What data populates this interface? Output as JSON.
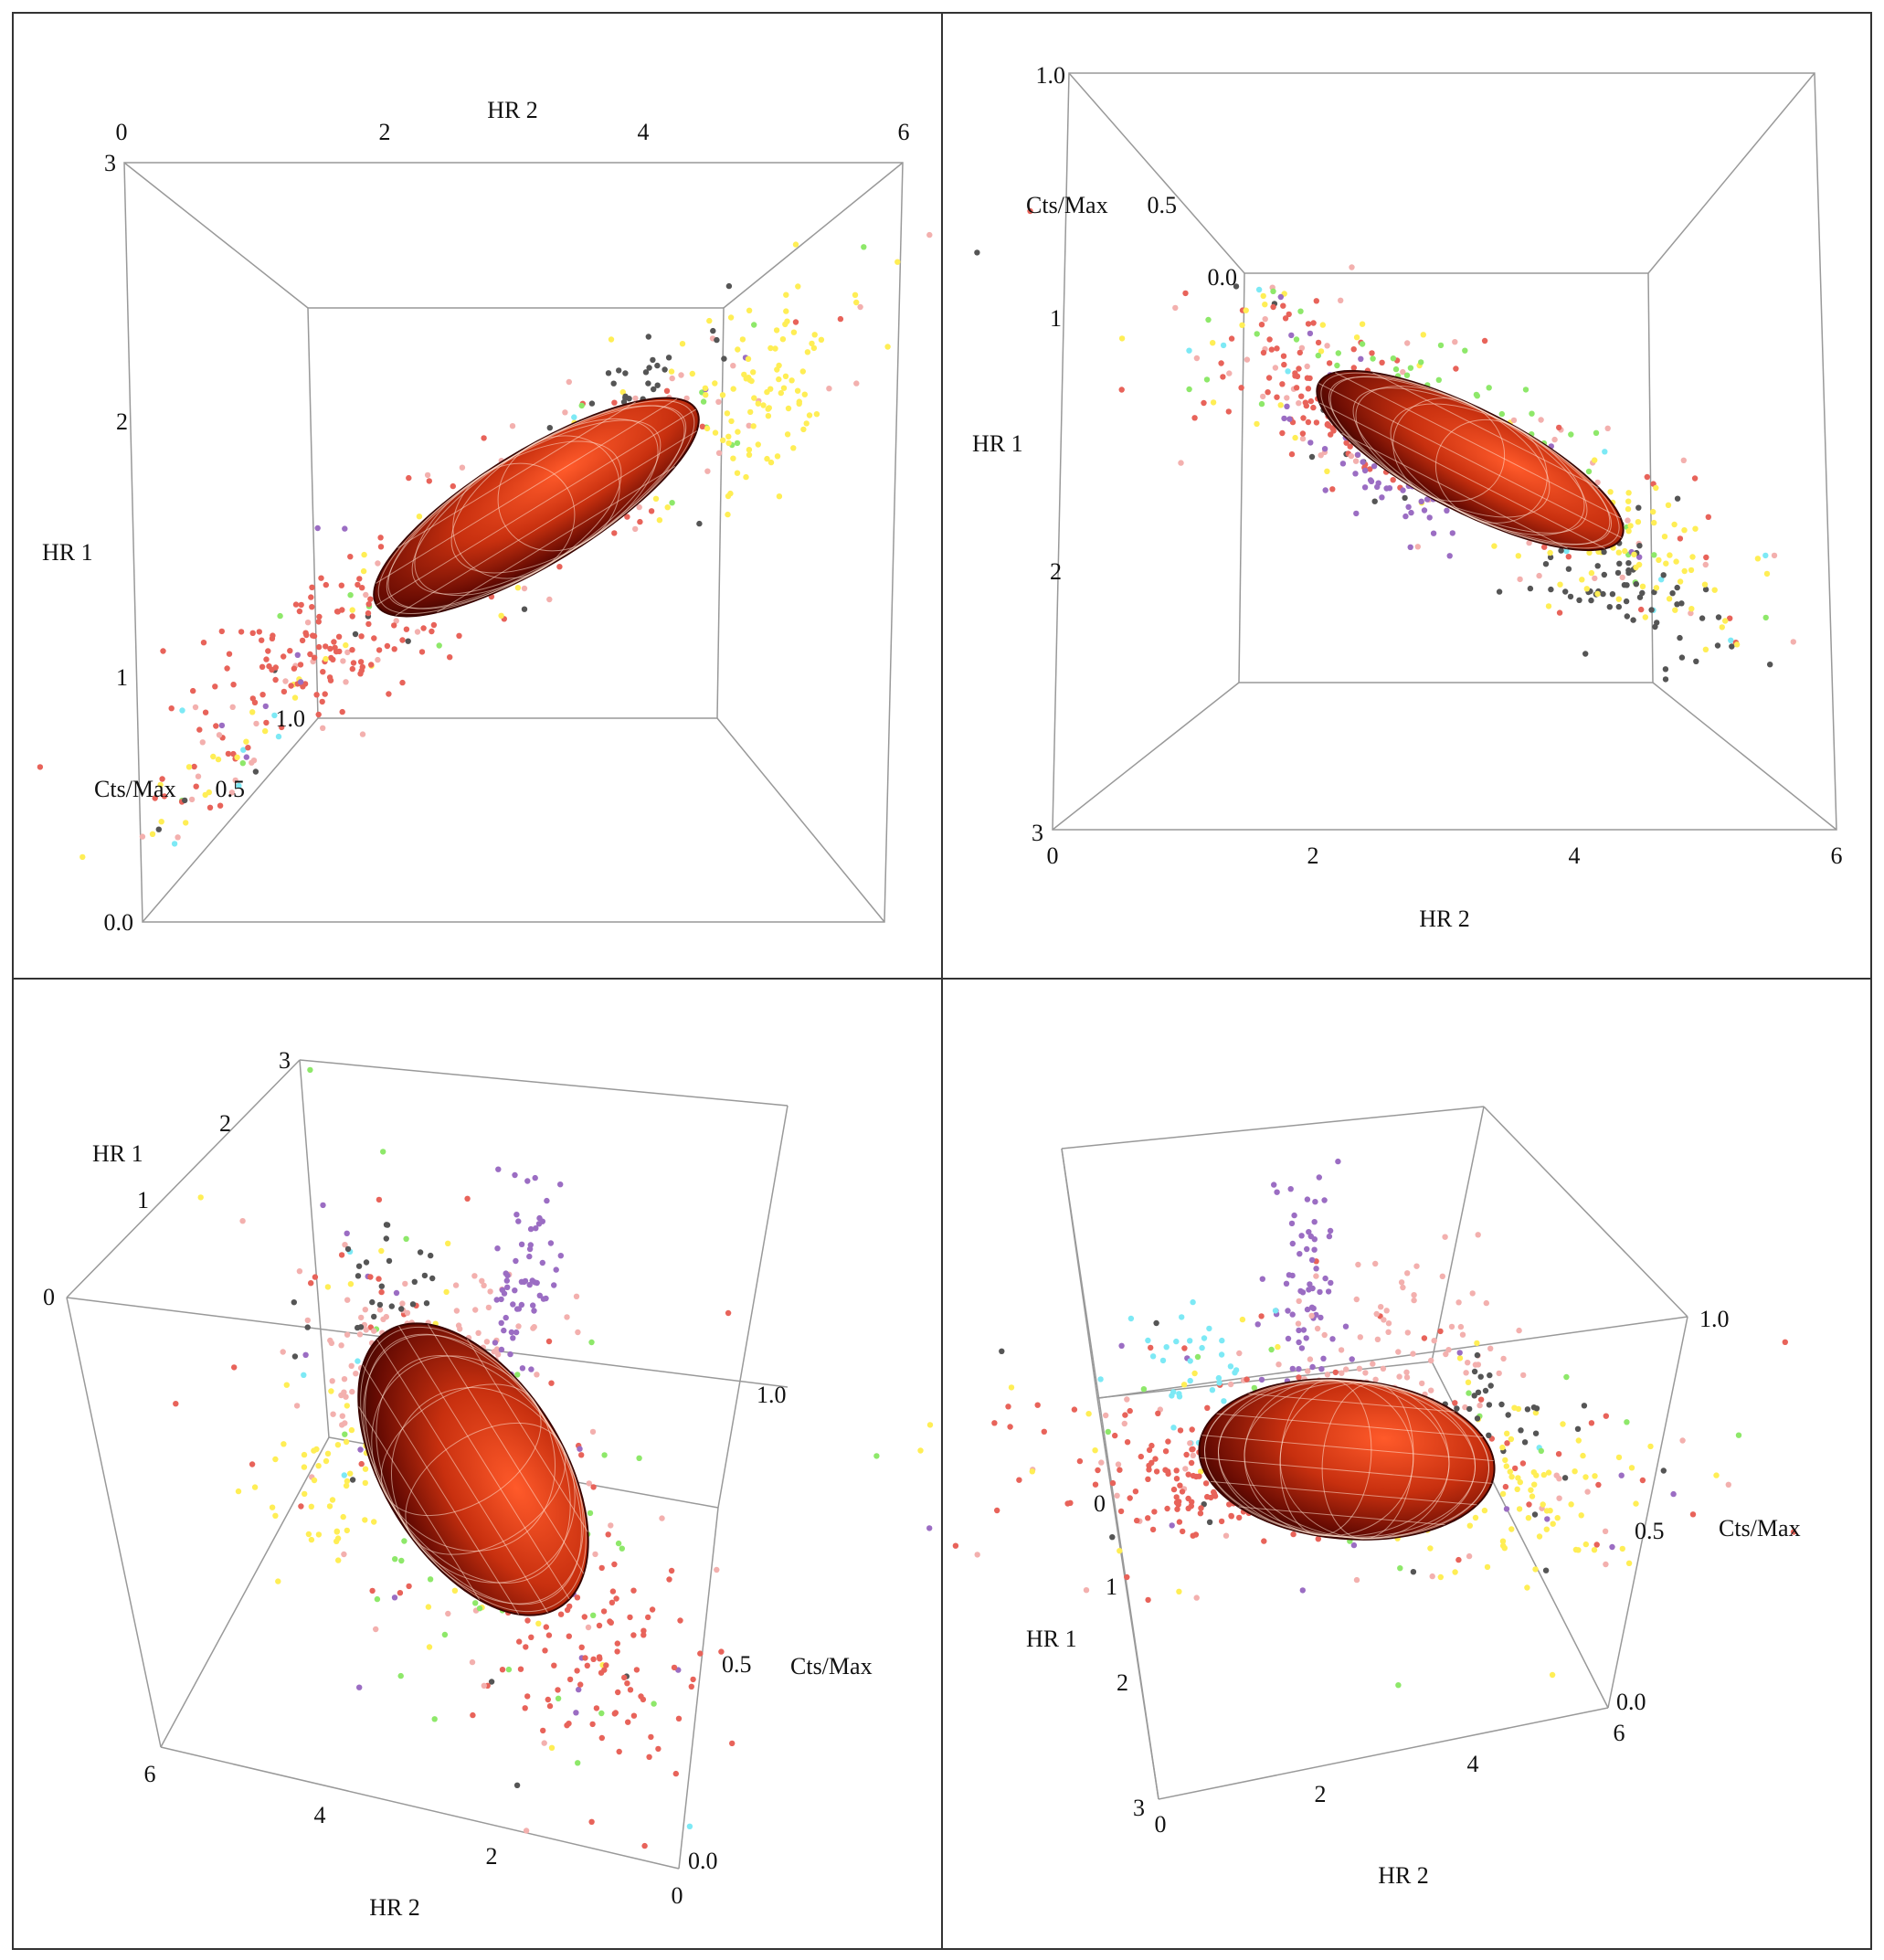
{
  "chart_data": [
    {
      "type": "scatter3d",
      "panel": "top-left",
      "axes": {
        "x": {
          "label": "HR 2",
          "ticks": [
            "0",
            "2",
            "4",
            "6"
          ],
          "range": [
            0,
            6
          ]
        },
        "y": {
          "label": "HR 1",
          "ticks": [
            "1",
            "2",
            "3"
          ],
          "range": [
            0,
            3
          ]
        },
        "z": {
          "label": "Cts/Max",
          "ticks": [
            "0.0",
            "0.5",
            "1.0"
          ],
          "range": [
            0,
            1
          ]
        }
      },
      "overlay": "red confidence ellipsoid with mesh",
      "series_colors": [
        "#e8635a",
        "#f3b0ae",
        "#ffee55",
        "#8ee86a",
        "#9b6dc3",
        "#555555",
        "#7de9f5"
      ]
    },
    {
      "type": "scatter3d",
      "panel": "top-right",
      "axes": {
        "x": {
          "label": "HR 2",
          "ticks": [
            "0",
            "2",
            "4",
            "6"
          ],
          "range": [
            0,
            6
          ]
        },
        "y": {
          "label": "HR 1",
          "ticks": [
            "1",
            "2",
            "3"
          ],
          "range": [
            0,
            3
          ]
        },
        "z": {
          "label": "Cts/Max",
          "ticks": [
            "0.0",
            "0.5",
            "1.0"
          ],
          "range": [
            0,
            1
          ]
        }
      },
      "overlay": "red confidence ellipsoid with mesh",
      "series_colors": [
        "#e8635a",
        "#f3b0ae",
        "#ffee55",
        "#8ee86a",
        "#9b6dc3",
        "#555555",
        "#7de9f5"
      ]
    },
    {
      "type": "scatter3d",
      "panel": "bottom-left",
      "axes": {
        "x": {
          "label": "HR 2",
          "ticks": [
            "0",
            "2",
            "4",
            "6"
          ],
          "range": [
            0,
            6
          ]
        },
        "y": {
          "label": "HR 1",
          "ticks": [
            "0",
            "1",
            "2",
            "3"
          ],
          "range": [
            0,
            3
          ]
        },
        "z": {
          "label": "Cts/Max",
          "ticks": [
            "0.0",
            "0.5",
            "1.0"
          ],
          "range": [
            0,
            1
          ]
        }
      },
      "overlay": "red confidence ellipsoid with mesh",
      "series_colors": [
        "#e8635a",
        "#f3b0ae",
        "#ffee55",
        "#8ee86a",
        "#9b6dc3",
        "#555555",
        "#7de9f5"
      ]
    },
    {
      "type": "scatter3d",
      "panel": "bottom-right",
      "axes": {
        "x": {
          "label": "HR 2",
          "ticks": [
            "0",
            "2",
            "4",
            "6"
          ],
          "range": [
            0,
            6
          ]
        },
        "y": {
          "label": "HR 1",
          "ticks": [
            "0",
            "1",
            "2",
            "3"
          ],
          "range": [
            0,
            3
          ]
        },
        "z": {
          "label": "Cts/Max",
          "ticks": [
            "0.0",
            "0.5",
            "1.0"
          ],
          "range": [
            0,
            1
          ]
        }
      },
      "overlay": "red confidence ellipsoid with mesh",
      "series_colors": [
        "#e8635a",
        "#f3b0ae",
        "#ffee55",
        "#8ee86a",
        "#9b6dc3",
        "#555555",
        "#7de9f5"
      ]
    }
  ]
}
